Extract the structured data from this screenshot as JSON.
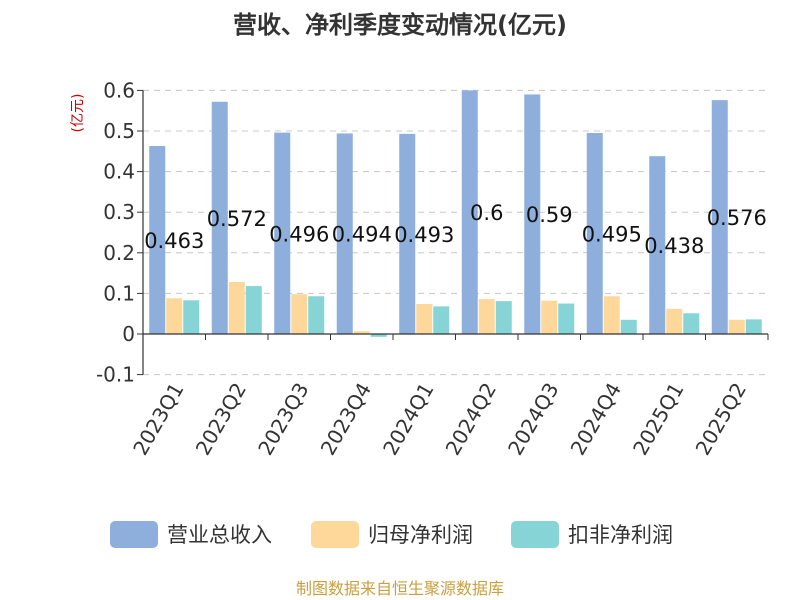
{
  "chart_data": {
    "type": "bar",
    "title": "营收、净利季度变动情况(亿元)",
    "unit_label": "(亿元)",
    "categories": [
      "2023Q1",
      "2023Q2",
      "2023Q3",
      "2023Q4",
      "2024Q1",
      "2024Q2",
      "2024Q3",
      "2024Q4",
      "2025Q1",
      "2025Q2"
    ],
    "series": [
      {
        "name": "营业总收入",
        "color": "#8eaedc",
        "values": [
          0.463,
          0.572,
          0.496,
          0.494,
          0.493,
          0.6,
          0.59,
          0.495,
          0.438,
          0.576
        ]
      },
      {
        "name": "归母净利润",
        "color": "#fdd89a",
        "values": [
          0.088,
          0.128,
          0.098,
          0.007,
          0.074,
          0.086,
          0.082,
          0.093,
          0.062,
          0.035
        ]
      },
      {
        "name": "扣非净利润",
        "color": "#86d4d6",
        "values": [
          0.083,
          0.118,
          0.093,
          -0.007,
          0.068,
          0.081,
          0.075,
          0.035,
          0.051,
          0.036
        ]
      }
    ],
    "data_labels": [
      "0.463",
      "0.572",
      "0.496",
      "0.494",
      "0.493",
      "0.6",
      "0.59",
      "0.495",
      "0.438",
      "0.576"
    ],
    "y_ticks": [
      "0.6",
      "0.5",
      "0.4",
      "0.3",
      "0.2",
      "0.1",
      "0",
      "-0.1"
    ],
    "ylim": [
      -0.1,
      0.6
    ],
    "grid": true,
    "legend_position": "bottom"
  },
  "source_text": "制图数据来自恒生聚源数据库"
}
